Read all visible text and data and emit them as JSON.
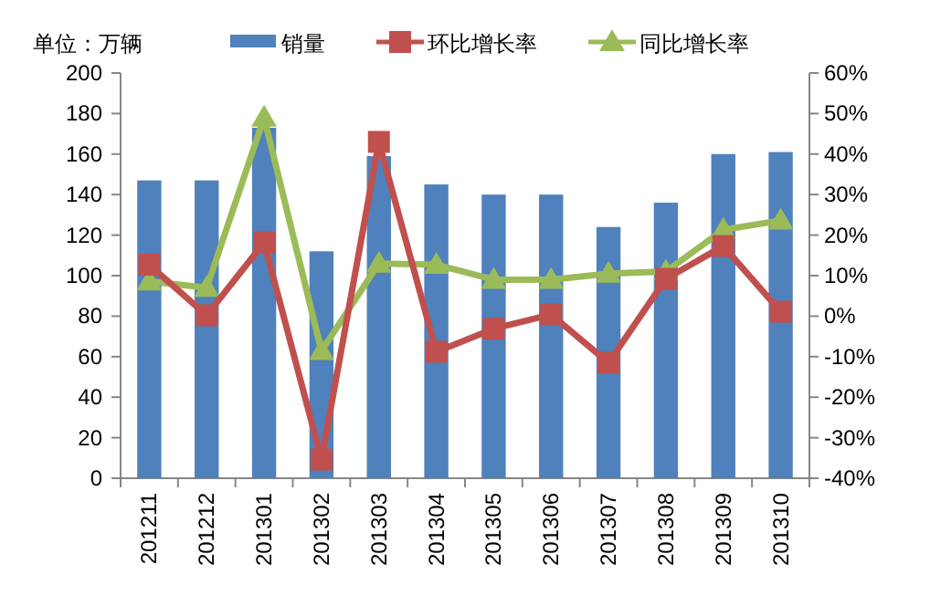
{
  "chart_data": {
    "type": "bar",
    "ylabel": "单位：万辆",
    "categories": [
      "201211",
      "201212",
      "201301",
      "201302",
      "201303",
      "201304",
      "201305",
      "201306",
      "201307",
      "201308",
      "201309",
      "201310"
    ],
    "series": [
      {
        "name": "销量",
        "color": "#4f81bd",
        "values": [
          147,
          147,
          173,
          112,
          159,
          145,
          140,
          140,
          124,
          136,
          160,
          161
        ]
      },
      {
        "name": "环比增长率",
        "type": "line",
        "axis": "y2",
        "marker": "square",
        "color": "#c0504d",
        "values": [
          12.7,
          0.2,
          18.2,
          -35.4,
          43,
          -8.8,
          -3.1,
          0.4,
          -11.5,
          9.2,
          17.3,
          1.1
        ]
      },
      {
        "name": "同比增长率",
        "type": "line",
        "axis": "y2",
        "marker": "triangle",
        "color": "#9bbb59",
        "values": [
          8.6,
          7,
          49,
          -8.6,
          13,
          12.7,
          9,
          9,
          10.5,
          11,
          21.3,
          23.6
        ]
      }
    ],
    "ylim": [
      0,
      200
    ],
    "yticks": [
      0,
      20,
      40,
      60,
      80,
      100,
      120,
      140,
      160,
      180,
      200
    ],
    "y2lim": [
      -40,
      60
    ],
    "y2ticks": [
      {
        "value": -40,
        "label": "-40%"
      },
      {
        "value": -30,
        "label": "-30%"
      },
      {
        "value": -20,
        "label": "-20%"
      },
      {
        "value": -10,
        "label": "-10%"
      },
      {
        "value": 0,
        "label": "0%"
      },
      {
        "value": 10,
        "label": "10%"
      },
      {
        "value": 20,
        "label": "20%"
      },
      {
        "value": 30,
        "label": "30%"
      },
      {
        "value": 40,
        "label": "40%"
      },
      {
        "value": 50,
        "label": "50%"
      },
      {
        "value": 60,
        "label": "60%"
      }
    ],
    "legend": "top",
    "grid": false
  }
}
